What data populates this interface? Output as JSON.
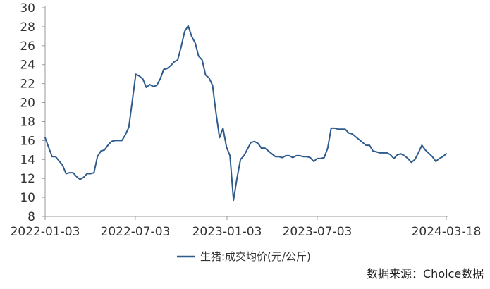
{
  "chart_data": {
    "type": "line",
    "title": "",
    "xlabel": "",
    "ylabel": "",
    "ylim": [
      8,
      30
    ],
    "y_ticks": [
      8,
      10,
      12,
      14,
      16,
      18,
      20,
      22,
      24,
      26,
      28,
      30
    ],
    "x_tick_labels": [
      "2022-01-03",
      "2022-07-03",
      "2023-01-03",
      "2023-07-03",
      "2024-03-18"
    ],
    "grid": false,
    "legend_position": "bottom-center",
    "series": [
      {
        "name": "生猪:成交均价(元/公斤)",
        "color": "#2f5b8c",
        "x": [
          "2022-01-03",
          "2022-01-10",
          "2022-01-17",
          "2022-01-24",
          "2022-02-07",
          "2022-02-14",
          "2022-02-21",
          "2022-02-28",
          "2022-03-07",
          "2022-03-14",
          "2022-03-21",
          "2022-03-28",
          "2022-04-04",
          "2022-04-11",
          "2022-04-18",
          "2022-04-25",
          "2022-05-02",
          "2022-05-09",
          "2022-05-16",
          "2022-05-23",
          "2022-05-30",
          "2022-06-06",
          "2022-06-13",
          "2022-06-20",
          "2022-06-27",
          "2022-07-04",
          "2022-07-11",
          "2022-07-18",
          "2022-07-25",
          "2022-08-01",
          "2022-08-08",
          "2022-08-15",
          "2022-08-22",
          "2022-08-29",
          "2022-09-05",
          "2022-09-12",
          "2022-09-19",
          "2022-09-26",
          "2022-10-03",
          "2022-10-10",
          "2022-10-17",
          "2022-10-24",
          "2022-10-31",
          "2022-11-07",
          "2022-11-14",
          "2022-11-21",
          "2022-11-28",
          "2022-12-05",
          "2022-12-12",
          "2022-12-19",
          "2022-12-26",
          "2023-01-02",
          "2023-01-09",
          "2023-01-16",
          "2023-01-23",
          "2023-01-30",
          "2023-02-06",
          "2023-02-13",
          "2023-02-20",
          "2023-02-27",
          "2023-03-06",
          "2023-03-13",
          "2023-03-20",
          "2023-03-27",
          "2023-04-03",
          "2023-04-10",
          "2023-04-17",
          "2023-04-24",
          "2023-05-01",
          "2023-05-08",
          "2023-05-15",
          "2023-05-22",
          "2023-05-29",
          "2023-06-05",
          "2023-06-12",
          "2023-06-19",
          "2023-06-26",
          "2023-07-03",
          "2023-07-10",
          "2023-07-17",
          "2023-07-24",
          "2023-07-31",
          "2023-08-07",
          "2023-08-14",
          "2023-08-21",
          "2023-08-28",
          "2023-09-04",
          "2023-09-11",
          "2023-09-18",
          "2023-09-25",
          "2023-10-02",
          "2023-10-09",
          "2023-10-16",
          "2023-10-23",
          "2023-10-30",
          "2023-11-06",
          "2023-11-13",
          "2023-11-20",
          "2023-11-27",
          "2023-12-04",
          "2023-12-11",
          "2023-12-18",
          "2023-12-25",
          "2024-01-01",
          "2024-01-08",
          "2024-01-15",
          "2024-01-22",
          "2024-01-29",
          "2024-02-05",
          "2024-02-19",
          "2024-02-26",
          "2024-03-04",
          "2024-03-11",
          "2024-03-18"
        ],
        "y": [
          16.3,
          15.3,
          14.3,
          14.3,
          13.4,
          12.5,
          12.6,
          12.6,
          12.2,
          11.9,
          12.1,
          12.5,
          12.5,
          12.6,
          14.3,
          14.9,
          15.0,
          15.5,
          15.9,
          16.0,
          16.0,
          16.0,
          16.6,
          17.4,
          20.2,
          23.0,
          22.8,
          22.5,
          21.6,
          21.9,
          21.7,
          21.8,
          22.5,
          23.5,
          23.6,
          23.9,
          24.3,
          24.5,
          25.9,
          27.5,
          28.1,
          27.0,
          26.3,
          24.9,
          24.5,
          22.9,
          22.6,
          21.8,
          18.9,
          16.3,
          17.3,
          15.3,
          14.4,
          9.7,
          12.0,
          14.0,
          14.4,
          15.1,
          15.8,
          15.9,
          15.7,
          15.2,
          15.2,
          14.9,
          14.6,
          14.3,
          14.3,
          14.2,
          14.4,
          14.4,
          14.2,
          14.4,
          14.4,
          14.3,
          14.3,
          14.2,
          13.8,
          14.1,
          14.1,
          14.2,
          15.2,
          17.3,
          17.3,
          17.2,
          17.2,
          17.2,
          16.8,
          16.7,
          16.4,
          16.1,
          15.8,
          15.5,
          15.5,
          14.9,
          14.8,
          14.7,
          14.7,
          14.7,
          14.5,
          14.1,
          14.5,
          14.6,
          14.4,
          14.1,
          13.7,
          14.0,
          14.7,
          15.5,
          15.0,
          14.3,
          13.8,
          14.1,
          14.3,
          14.6
        ]
      }
    ]
  },
  "legend": {
    "label": "生猪:成交均价(元/公斤)"
  },
  "source": {
    "text": "数据来源：Choice数据"
  }
}
